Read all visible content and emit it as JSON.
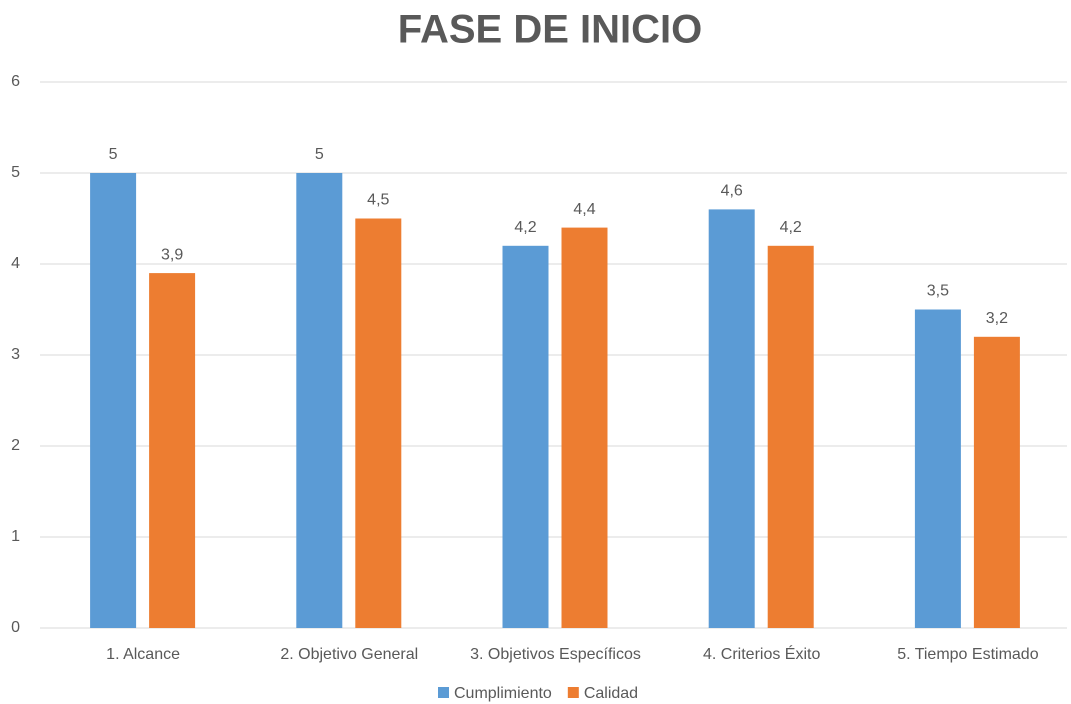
{
  "chart_data": {
    "type": "bar",
    "title": "FASE DE INICIO",
    "categories": [
      "1. Alcance",
      "2. Objetivo General",
      "3. Objetivos Específicos",
      "4. Criterios Éxito",
      "5. Tiempo Estimado"
    ],
    "series": [
      {
        "name": "Cumplimiento",
        "color": "#5b9bd5",
        "values": [
          5,
          5,
          4.2,
          4.6,
          3.5
        ],
        "value_labels": [
          "5",
          "5",
          "4,2",
          "4,6",
          "3,5"
        ]
      },
      {
        "name": "Calidad",
        "color": "#ed7d31",
        "values": [
          3.9,
          4.5,
          4.4,
          4.2,
          3.2
        ],
        "value_labels": [
          "3,9",
          "4,5",
          "4,4",
          "4,2",
          "3,2"
        ]
      }
    ],
    "ylim": [
      0,
      6
    ],
    "yticks": [
      0,
      1,
      2,
      3,
      4,
      5,
      6
    ],
    "grid": true,
    "legend": "bottom"
  }
}
